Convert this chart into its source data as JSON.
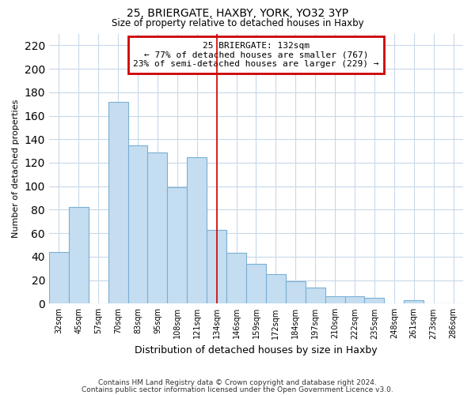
{
  "title": "25, BRIERGATE, HAXBY, YORK, YO32 3YP",
  "subtitle": "Size of property relative to detached houses in Haxby",
  "xlabel": "Distribution of detached houses by size in Haxby",
  "ylabel": "Number of detached properties",
  "categories": [
    "32sqm",
    "45sqm",
    "57sqm",
    "70sqm",
    "83sqm",
    "95sqm",
    "108sqm",
    "121sqm",
    "134sqm",
    "146sqm",
    "159sqm",
    "172sqm",
    "184sqm",
    "197sqm",
    "210sqm",
    "222sqm",
    "235sqm",
    "248sqm",
    "261sqm",
    "273sqm",
    "286sqm"
  ],
  "values": [
    44,
    82,
    0,
    172,
    135,
    129,
    99,
    125,
    63,
    43,
    34,
    25,
    19,
    14,
    6,
    6,
    5,
    0,
    3,
    0,
    0
  ],
  "bar_color": "#c5ddf0",
  "bar_edge_color": "#7ab0d4",
  "vline_x_index": 8,
  "vline_color": "#cc0000",
  "annotation_box_title": "25 BRIERGATE: 132sqm",
  "annotation_line1": "← 77% of detached houses are smaller (767)",
  "annotation_line2": "23% of semi-detached houses are larger (229) →",
  "annotation_box_edge_color": "#cc0000",
  "ylim": [
    0,
    230
  ],
  "yticks": [
    0,
    20,
    40,
    60,
    80,
    100,
    120,
    140,
    160,
    180,
    200,
    220
  ],
  "footnote1": "Contains HM Land Registry data © Crown copyright and database right 2024.",
  "footnote2": "Contains public sector information licensed under the Open Government Licence v3.0.",
  "background_color": "#ffffff",
  "grid_color": "#c8d8e8"
}
